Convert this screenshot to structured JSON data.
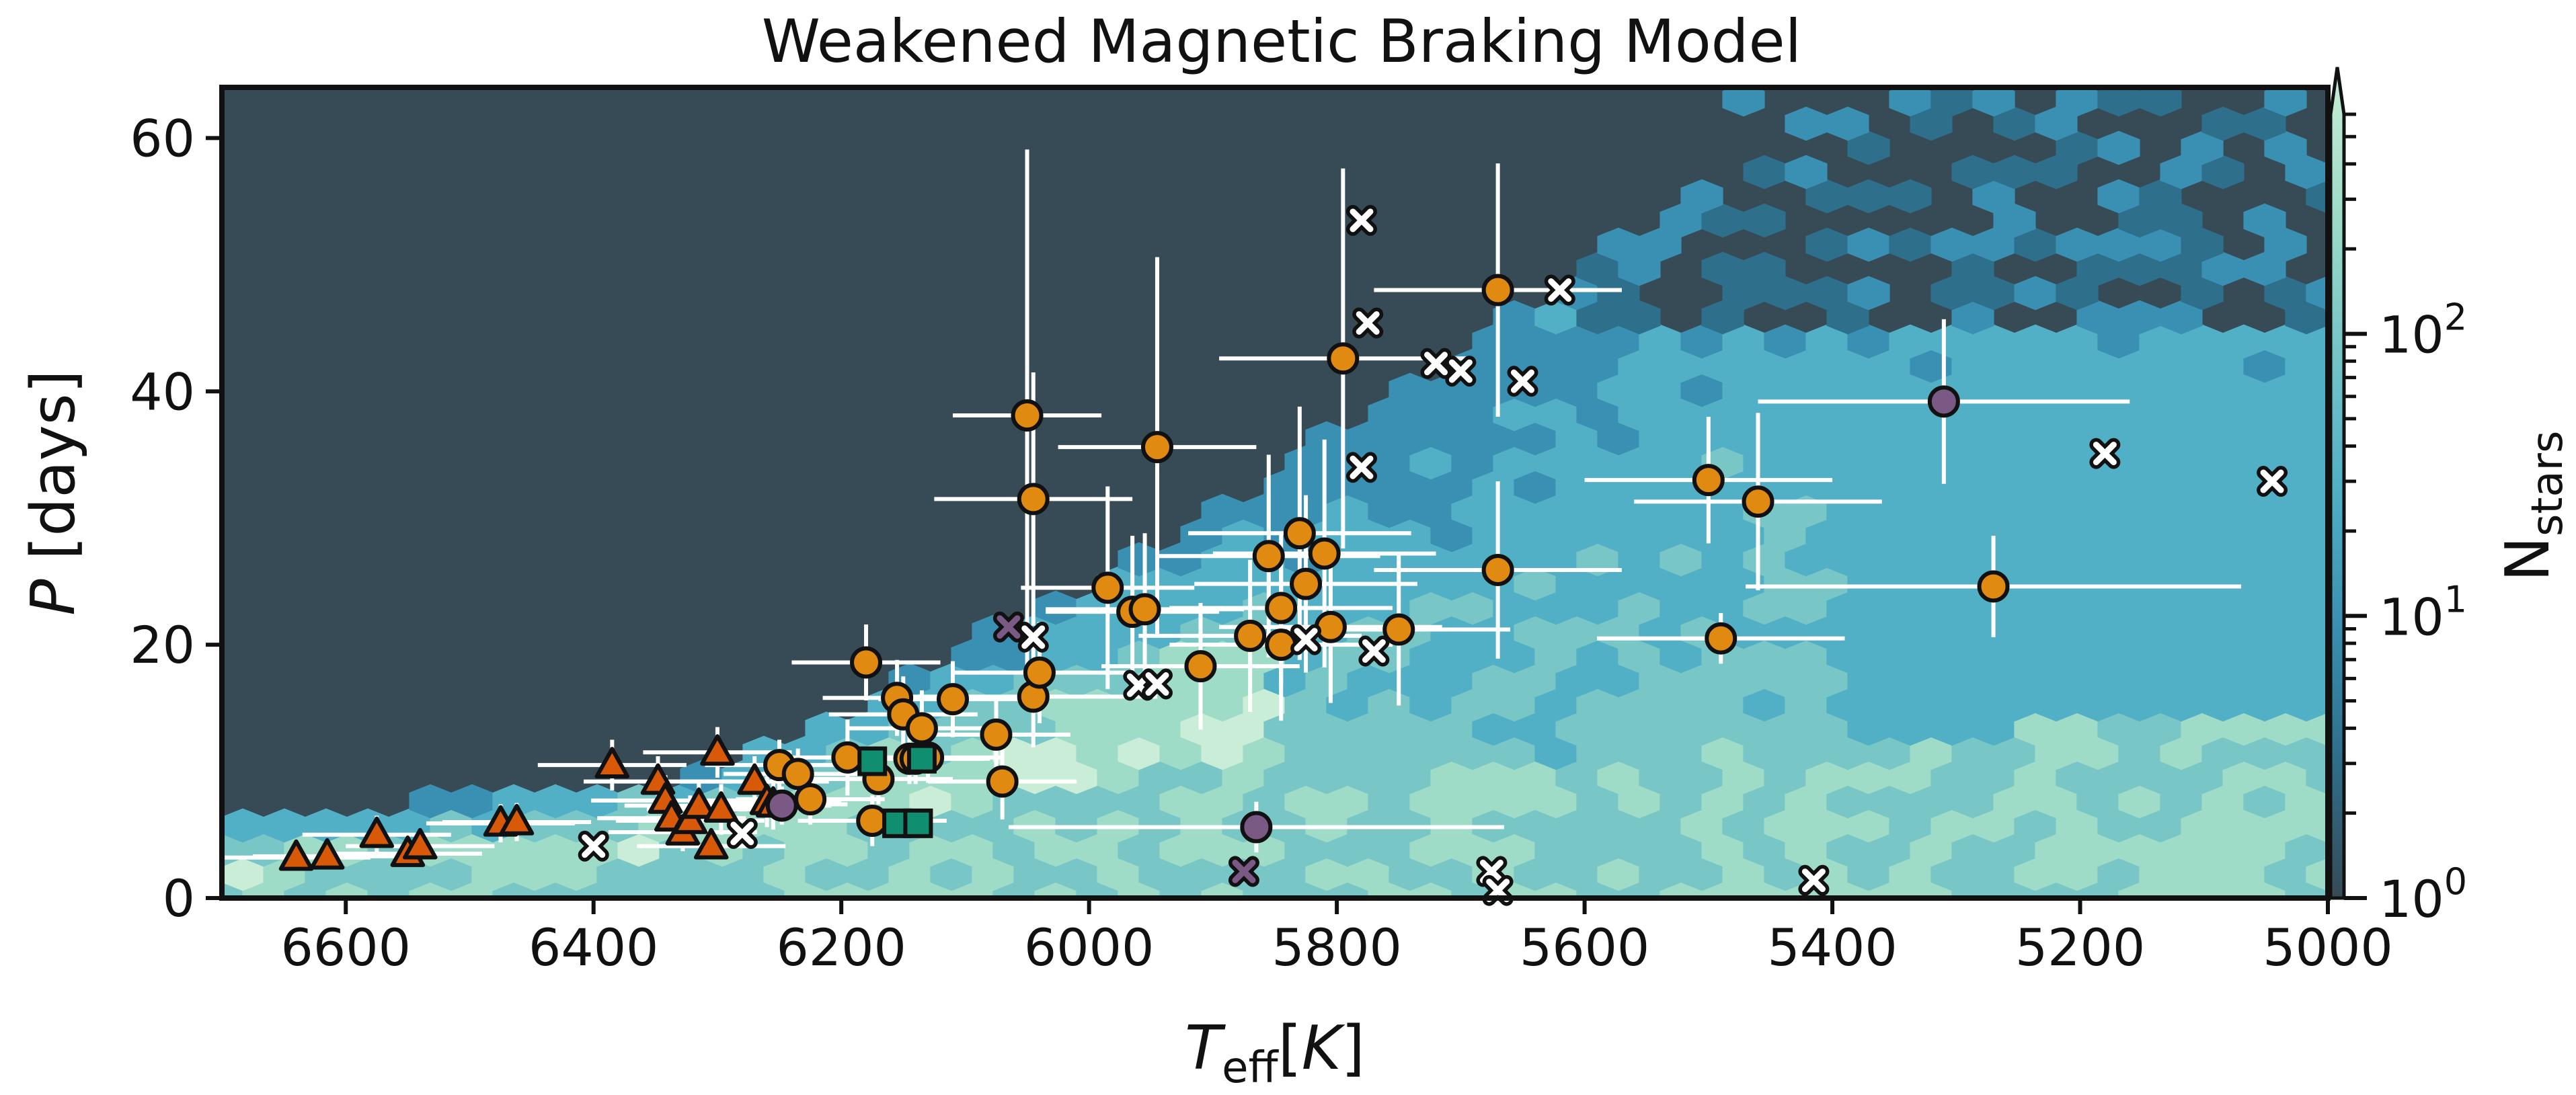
{
  "chart_data": {
    "type": "scatter",
    "title": "Weakened Magnetic Braking Model",
    "xlabel": "T_eff[K]",
    "ylabel": "P [days]",
    "colorbar_label": "N_stars",
    "xlim": [
      6700,
      5000
    ],
    "ylim": [
      0,
      64
    ],
    "x_reversed": true,
    "xticks": [
      6600,
      6400,
      6200,
      6000,
      5800,
      5600,
      5400,
      5200,
      5000
    ],
    "yticks": [
      0,
      20,
      40,
      60
    ],
    "colorbar": {
      "scale": "log",
      "range": [
        1,
        600
      ],
      "major_ticks": [
        1,
        10,
        100
      ],
      "major_tick_labels": [
        "10^0",
        "10^1",
        "10^2"
      ],
      "extend": "max"
    },
    "grid": false,
    "background_histogram": {
      "kind": "hexbin",
      "empty_color": "#364b56",
      "colors": [
        "#2e6f8c",
        "#3a90b2",
        "#52b0c6",
        "#78c6c6",
        "#9fdcc7",
        "#c9edd6"
      ]
    },
    "colors": {
      "circle": "#e08a12",
      "triangle": "#d85a08",
      "square": "#0f8e70",
      "purple": "#7a5a84",
      "cross": "#ffffff",
      "errorbar": "#ffffff"
    },
    "series": [
      {
        "marker": "circle",
        "x": [
          6250,
          6235,
          6225,
          6195,
          6180,
          6175,
          6170,
          6155,
          6150,
          6145,
          6140,
          6135,
          6130,
          6110,
          6075,
          6070,
          6050,
          6045,
          6045,
          6040,
          5985,
          5965,
          5955,
          5945,
          5910,
          5870,
          5855,
          5845,
          5845,
          5830,
          5825,
          5810,
          5805,
          5795,
          5750,
          5670,
          5670,
          5500,
          5490,
          5460,
          5270
        ],
        "y": [
          10.5,
          9.8,
          7.8,
          11.1,
          18.6,
          6.1,
          9.4,
          15.8,
          14.5,
          11.0,
          11.0,
          13.4,
          11.1,
          15.7,
          12.9,
          9.2,
          38.1,
          31.5,
          15.9,
          17.8,
          24.5,
          22.6,
          22.8,
          35.6,
          18.3,
          20.7,
          27.0,
          22.9,
          20.0,
          28.8,
          24.8,
          27.2,
          21.4,
          42.6,
          21.2,
          25.9,
          48.0,
          33.0,
          20.5,
          31.3,
          24.6
        ],
        "xerr": [
          60,
          60,
          60,
          60,
          60,
          60,
          60,
          60,
          60,
          60,
          60,
          60,
          60,
          60,
          60,
          60,
          60,
          80,
          100,
          70,
          70,
          70,
          80,
          80,
          80,
          90,
          90,
          90,
          90,
          90,
          90,
          90,
          90,
          100,
          90,
          100,
          100,
          100,
          100,
          100,
          200
        ],
        "yerr": [
          2,
          2,
          2,
          3,
          3,
          2,
          2,
          3,
          3,
          2,
          2,
          3,
          2,
          3,
          3,
          3,
          21,
          10,
          4,
          4,
          8,
          6,
          6,
          15,
          5,
          6,
          8,
          6,
          6,
          10,
          7,
          9,
          6,
          15,
          6,
          7,
          10,
          5,
          2,
          7,
          4
        ]
      },
      {
        "marker": "triangle",
        "x": [
          6640,
          6615,
          6575,
          6550,
          6540,
          6475,
          6462,
          6385,
          6348,
          6342,
          6337,
          6328,
          6322,
          6315,
          6305,
          6300,
          6297,
          6270,
          6260,
          6255
        ],
        "y": [
          3.2,
          3.3,
          5.0,
          3.5,
          4.1,
          5.9,
          6.0,
          10.5,
          9.2,
          7.7,
          6.3,
          5.2,
          6.1,
          7.3,
          4.1,
          11.5,
          7.0,
          9.2,
          7.6,
          7.4
        ],
        "xerr": [
          60,
          60,
          60,
          60,
          60,
          60,
          60,
          60,
          60,
          60,
          60,
          60,
          60,
          60,
          60,
          60,
          60,
          60,
          60,
          60
        ],
        "yerr": [
          1,
          1,
          1.5,
          1,
          1,
          1.5,
          1.5,
          2,
          2,
          2,
          2,
          1.5,
          2,
          2,
          1,
          2,
          2,
          2,
          2,
          2
        ]
      },
      {
        "marker": "square",
        "x": [
          6175,
          6155,
          6138,
          6135
        ],
        "y": [
          10.8,
          5.9,
          5.9,
          11.0
        ]
      },
      {
        "marker": "purple-circle",
        "x": [
          6248,
          5865,
          5310
        ],
        "y": [
          7.3,
          5.6,
          39.2
        ],
        "xerr": [
          40,
          200,
          150
        ],
        "yerr": [
          1.5,
          2,
          6.5
        ]
      },
      {
        "marker": "purple-cross",
        "x": [
          6065,
          5875
        ],
        "y": [
          21.4,
          2.1
        ]
      },
      {
        "marker": "white-cross",
        "x": [
          6400,
          6280,
          6045,
          5960,
          5945,
          5825,
          5780,
          5780,
          5775,
          5770,
          5720,
          5700,
          5675,
          5670,
          5650,
          5620,
          5415,
          5180,
          5045
        ],
        "y": [
          4.1,
          5.1,
          20.6,
          16.8,
          16.9,
          20.4,
          53.5,
          34.0,
          45.4,
          19.5,
          42.2,
          41.6,
          2.1,
          0.6,
          40.8,
          48.0,
          1.4,
          35.1,
          32.9
        ],
        "xerr": [
          0,
          0,
          0,
          0,
          0,
          0,
          0,
          0,
          0,
          0,
          0,
          0,
          0,
          0,
          0,
          50,
          0,
          0,
          0
        ],
        "yerr": [
          0,
          0,
          0,
          0,
          0,
          0,
          0,
          0,
          0,
          0,
          0,
          0,
          0,
          0,
          0,
          0,
          0,
          0,
          0
        ]
      }
    ]
  }
}
